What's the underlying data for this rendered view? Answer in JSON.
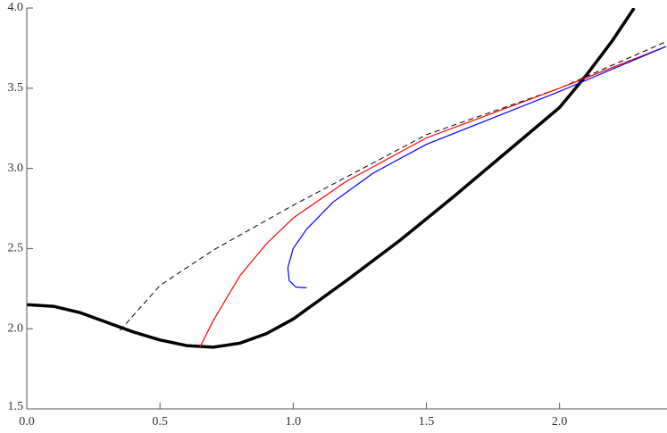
{
  "chart_data": {
    "type": "line",
    "xlim": [
      0,
      2.4
    ],
    "ylim": [
      1.5,
      4.0
    ],
    "xticks": [
      {
        "value": 0,
        "label": "0.0"
      },
      0.5,
      {
        "value": 1,
        "label": "1.0"
      },
      1.5,
      {
        "value": 2,
        "label": "2.0"
      }
    ],
    "yticks": [
      1.5,
      {
        "value": 2,
        "label": "2.0"
      },
      2.5,
      {
        "value": 3,
        "label": "3.0"
      },
      3.5,
      {
        "value": 4,
        "label": "4.0"
      }
    ],
    "series": [
      {
        "color": "#000000",
        "width": 3.5,
        "dashed": false,
        "x": [
          0,
          0.1,
          0.2,
          0.3,
          0.4,
          0.5,
          0.6,
          0.7,
          0.8,
          0.9,
          1.0,
          1.2,
          1.4,
          1.6,
          1.8,
          2.0,
          2.1,
          2.2,
          2.28
        ],
        "values": [
          2.15,
          2.14,
          2.1,
          2.04,
          1.98,
          1.93,
          1.895,
          1.885,
          1.91,
          1.97,
          2.06,
          2.3,
          2.55,
          2.82,
          3.1,
          3.38,
          3.58,
          3.8,
          4.0
        ]
      },
      {
        "color": "#000000",
        "width": 1,
        "dashed": true,
        "x": [
          0.35,
          0.5,
          0.7,
          1.0,
          1.5,
          2.0,
          2.4
        ],
        "values": [
          1.99,
          2.27,
          2.49,
          2.77,
          3.21,
          3.5,
          3.79
        ]
      },
      {
        "color": "#ff0000",
        "width": 1.2,
        "dashed": false,
        "x": [
          0.65,
          0.7,
          0.8,
          0.9,
          1.0,
          1.2,
          1.5,
          2.0,
          2.4
        ],
        "values": [
          1.885,
          2.05,
          2.33,
          2.53,
          2.69,
          2.92,
          3.19,
          3.5,
          3.76
        ]
      },
      {
        "color": "#0000ff",
        "width": 1.2,
        "dashed": false,
        "x": [
          1.05,
          1.01,
          0.985,
          0.98,
          1.0,
          1.05,
          1.15,
          1.3,
          1.5,
          2.0,
          2.4
        ],
        "values": [
          2.255,
          2.26,
          2.3,
          2.38,
          2.5,
          2.62,
          2.79,
          2.97,
          3.15,
          3.48,
          3.76
        ]
      }
    ]
  }
}
